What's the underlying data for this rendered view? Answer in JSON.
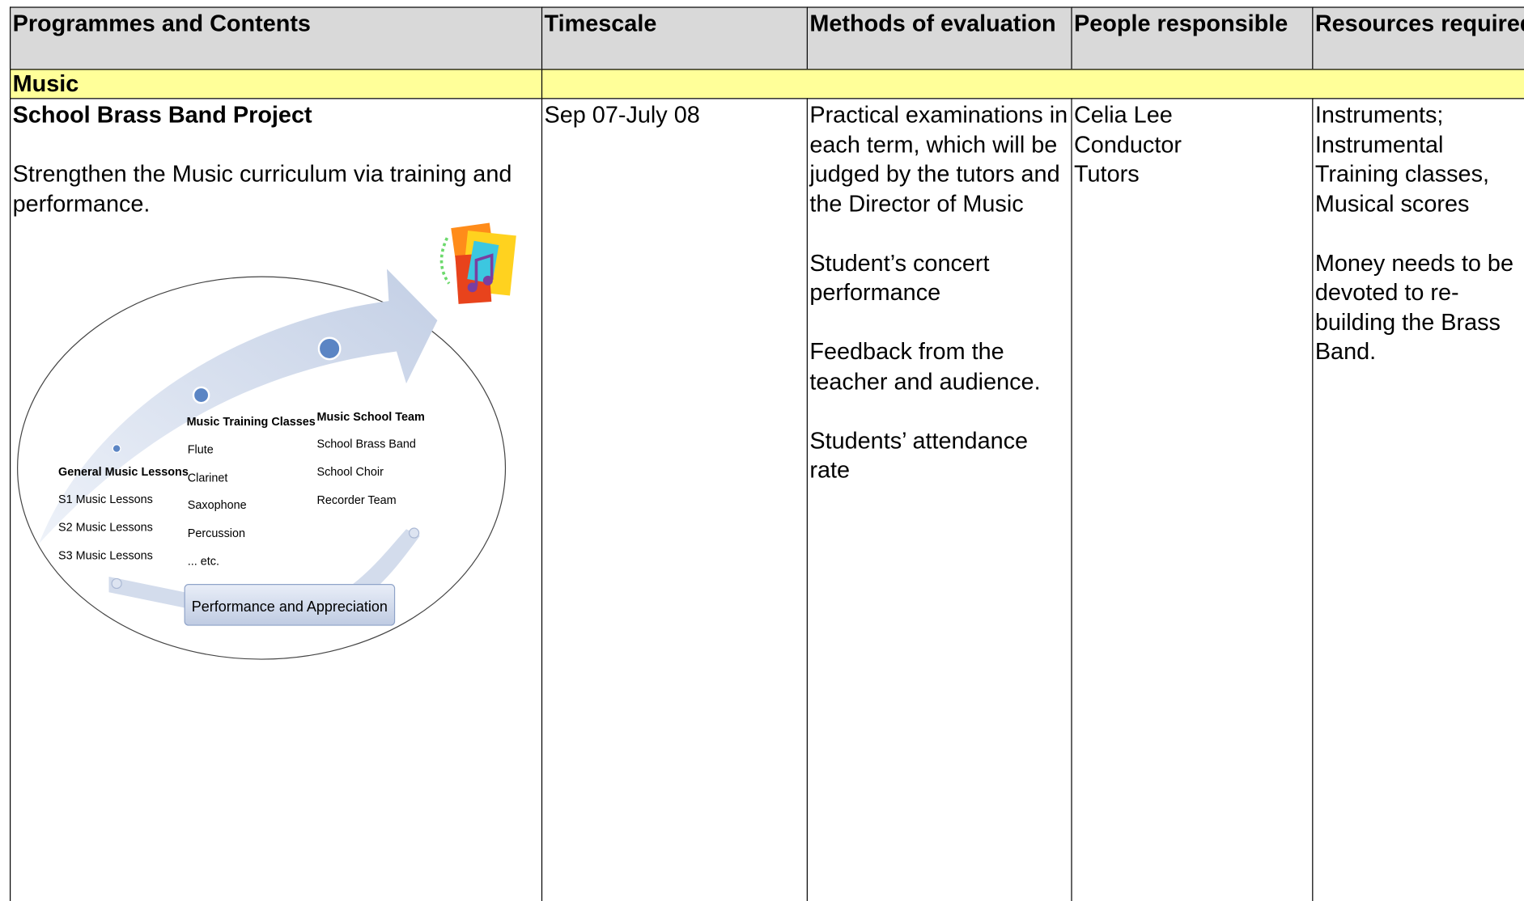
{
  "header": {
    "columns": [
      "Programmes and Contents",
      "Timescale",
      "Methods of evaluation",
      "People responsible",
      "Resources required"
    ]
  },
  "section": "Music",
  "row": {
    "title": "School Brass Band Project",
    "description": "Strengthen the Music curriculum via training and performance.",
    "diagram": {
      "groups": [
        {
          "title": "General Music Lessons",
          "items": [
            "S1 Music Lessons",
            "S2 Music Lessons",
            "S3 Music Lessons"
          ]
        },
        {
          "title": "Music Training Classes",
          "items": [
            "Flute",
            "Clarinet",
            "Saxophone",
            "Percussion",
            "... etc."
          ]
        },
        {
          "title": "Music School Team",
          "items": [
            "School Brass Band",
            "School Choir",
            "Recorder Team"
          ]
        }
      ],
      "footer": "Performance and Appreciation"
    },
    "timescale": "Sep 07-July 08",
    "evaluation": [
      "Practical examinations in each term, which will be judged by the tutors and the Director of Music",
      "Student’s concert performance",
      "Feedback from the teacher and audience.",
      "Students’ attendance rate"
    ],
    "people": [
      "Celia Lee",
      "Conductor",
      "Tutors"
    ],
    "resources": [
      "Instruments; Instrumental Training classes, Musical scores",
      "Money needs to be devoted to re-building the Brass Band."
    ]
  }
}
